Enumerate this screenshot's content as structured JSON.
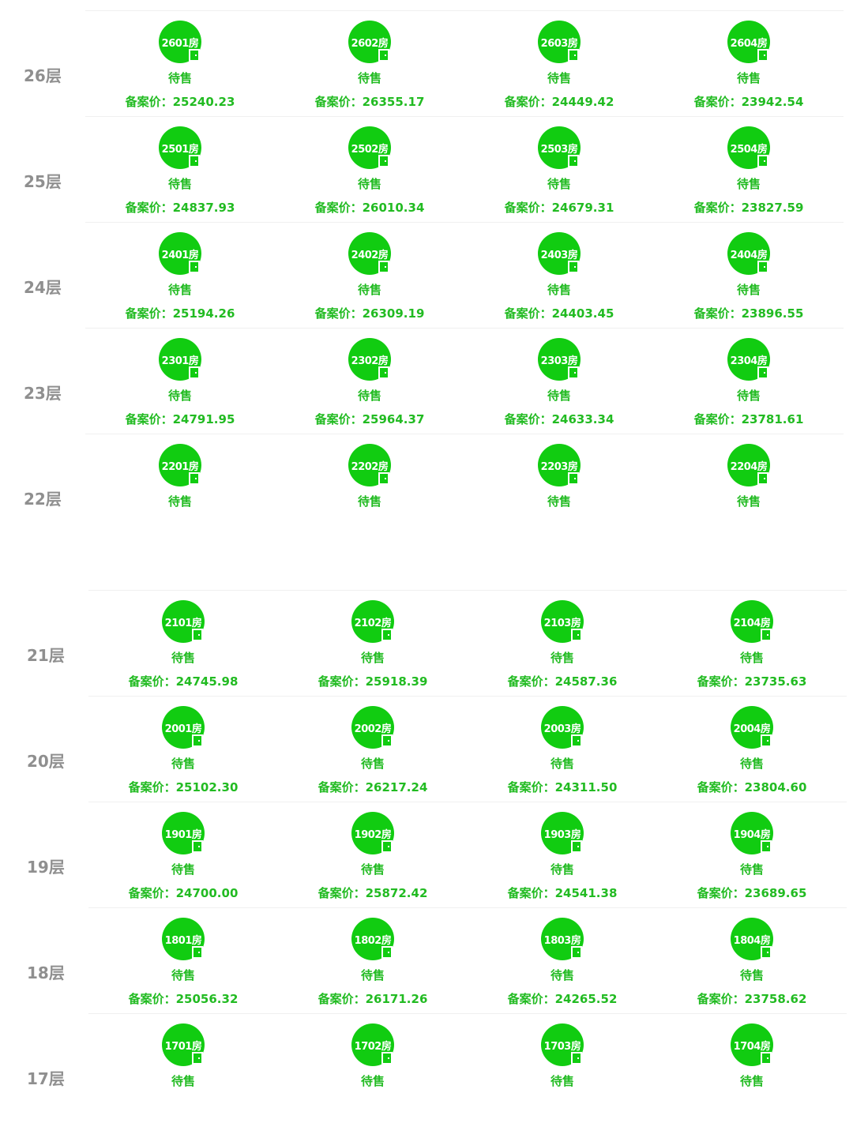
{
  "price_prefix": "备案价：",
  "colors": {
    "badge_green": "#11cc11",
    "text_green": "#22bb22",
    "floor_label_gray": "#8f8f8f",
    "divider": "#f0f0f0"
  },
  "top_floors": [
    {
      "floor": "26层",
      "units": [
        {
          "room": "2601房",
          "status": "待售",
          "price": "25240.23"
        },
        {
          "room": "2602房",
          "status": "待售",
          "price": "26355.17"
        },
        {
          "room": "2603房",
          "status": "待售",
          "price": "24449.42"
        },
        {
          "room": "2604房",
          "status": "待售",
          "price": "23942.54"
        }
      ]
    },
    {
      "floor": "25层",
      "units": [
        {
          "room": "2501房",
          "status": "待售",
          "price": "24837.93"
        },
        {
          "room": "2502房",
          "status": "待售",
          "price": "26010.34"
        },
        {
          "room": "2503房",
          "status": "待售",
          "price": "24679.31"
        },
        {
          "room": "2504房",
          "status": "待售",
          "price": "23827.59"
        }
      ]
    },
    {
      "floor": "24层",
      "units": [
        {
          "room": "2401房",
          "status": "待售",
          "price": "25194.26"
        },
        {
          "room": "2402房",
          "status": "待售",
          "price": "26309.19"
        },
        {
          "room": "2403房",
          "status": "待售",
          "price": "24403.45"
        },
        {
          "room": "2404房",
          "status": "待售",
          "price": "23896.55"
        }
      ]
    },
    {
      "floor": "23层",
      "units": [
        {
          "room": "2301房",
          "status": "待售",
          "price": "24791.95"
        },
        {
          "room": "2302房",
          "status": "待售",
          "price": "25964.37"
        },
        {
          "room": "2303房",
          "status": "待售",
          "price": "24633.34"
        },
        {
          "room": "2304房",
          "status": "待售",
          "price": "23781.61"
        }
      ]
    },
    {
      "floor": "22层",
      "units": [
        {
          "room": "2201房",
          "status": "待售",
          "price": null
        },
        {
          "room": "2202房",
          "status": "待售",
          "price": null
        },
        {
          "room": "2203房",
          "status": "待售",
          "price": null
        },
        {
          "room": "2204房",
          "status": "待售",
          "price": null
        }
      ]
    }
  ],
  "bottom_floors": [
    {
      "floor": "21层",
      "units": [
        {
          "room": "2101房",
          "status": "待售",
          "price": "24745.98"
        },
        {
          "room": "2102房",
          "status": "待售",
          "price": "25918.39"
        },
        {
          "room": "2103房",
          "status": "待售",
          "price": "24587.36"
        },
        {
          "room": "2104房",
          "status": "待售",
          "price": "23735.63"
        }
      ]
    },
    {
      "floor": "20层",
      "units": [
        {
          "room": "2001房",
          "status": "待售",
          "price": "25102.30"
        },
        {
          "room": "2002房",
          "status": "待售",
          "price": "26217.24"
        },
        {
          "room": "2003房",
          "status": "待售",
          "price": "24311.50"
        },
        {
          "room": "2004房",
          "status": "待售",
          "price": "23804.60"
        }
      ]
    },
    {
      "floor": "19层",
      "units": [
        {
          "room": "1901房",
          "status": "待售",
          "price": "24700.00"
        },
        {
          "room": "1902房",
          "status": "待售",
          "price": "25872.42"
        },
        {
          "room": "1903房",
          "status": "待售",
          "price": "24541.38"
        },
        {
          "room": "1904房",
          "status": "待售",
          "price": "23689.65"
        }
      ]
    },
    {
      "floor": "18层",
      "units": [
        {
          "room": "1801房",
          "status": "待售",
          "price": "25056.32"
        },
        {
          "room": "1802房",
          "status": "待售",
          "price": "26171.26"
        },
        {
          "room": "1803房",
          "status": "待售",
          "price": "24265.52"
        },
        {
          "room": "1804房",
          "status": "待售",
          "price": "23758.62"
        }
      ]
    },
    {
      "floor": "17层",
      "units": [
        {
          "room": "1701房",
          "status": "待售",
          "price": null
        },
        {
          "room": "1702房",
          "status": "待售",
          "price": null
        },
        {
          "room": "1703房",
          "status": "待售",
          "price": null
        },
        {
          "room": "1704房",
          "status": "待售",
          "price": null
        }
      ]
    }
  ]
}
